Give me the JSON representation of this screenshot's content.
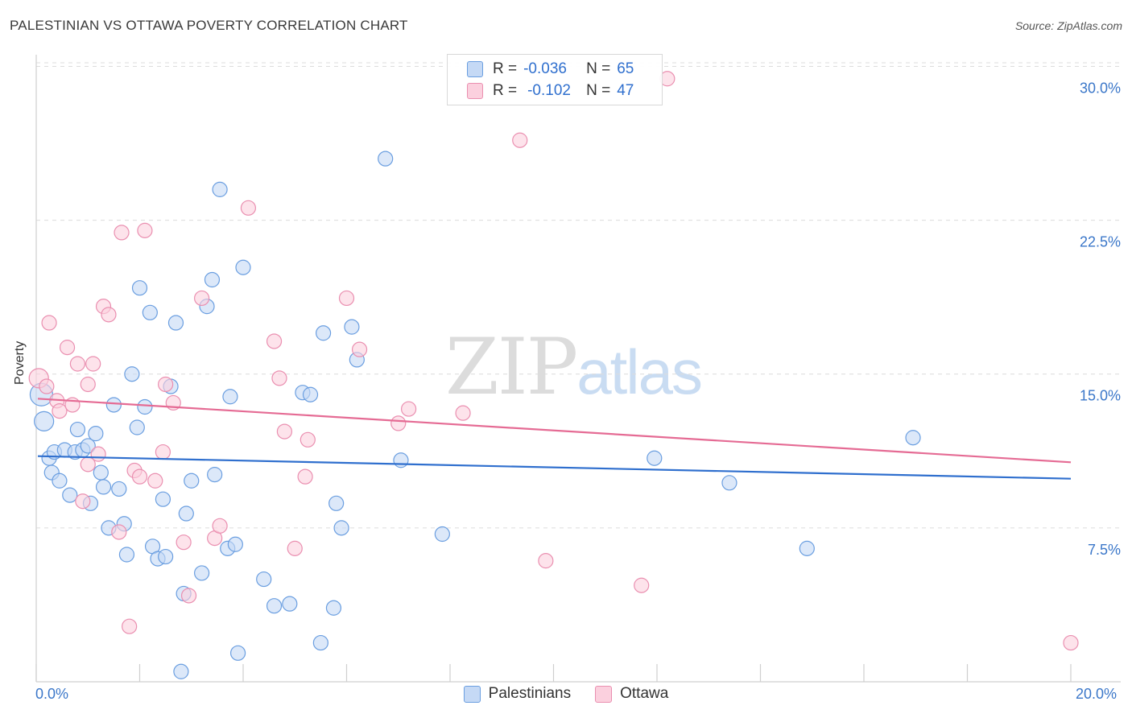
{
  "title": "PALESTINIAN VS OTTAWA POVERTY CORRELATION CHART",
  "source": "Source: ZipAtlas.com",
  "watermark": {
    "part1": "ZIP",
    "part2": "atlas"
  },
  "colors": {
    "palestinians_fill": "#c5d9f5",
    "palestinians_stroke": "#6a9ee0",
    "palestinians_line": "#2f6fce",
    "ottawa_fill": "#fbd0de",
    "ottawa_stroke": "#ea8fb0",
    "ottawa_line": "#e56b94",
    "axis_label": "#3b77c9",
    "grid": "#dcdcdc"
  },
  "legend": {
    "rows": [
      {
        "r_label": "R =",
        "r_value": "-0.036",
        "n_label": "N =",
        "n_value": "65"
      },
      {
        "r_label": "R =",
        "r_value": "-0.102",
        "n_label": "N =",
        "n_value": "47"
      }
    ]
  },
  "bottom_legend": {
    "series1": "Palestinians",
    "series2": "Ottawa"
  },
  "x_labels": {
    "min": "0.0%",
    "max": "20.0%"
  },
  "chart_data": {
    "type": "scatter",
    "title": "PALESTINIAN VS OTTAWA POVERTY CORRELATION CHART",
    "xlabel": "",
    "ylabel": "Poverty",
    "xlim": [
      0,
      20
    ],
    "ylim": [
      0,
      31
    ],
    "y_ticks": [
      {
        "value": 7.5,
        "label": "7.5%"
      },
      {
        "value": 15.0,
        "label": "15.0%"
      },
      {
        "value": 22.5,
        "label": "22.5%"
      },
      {
        "value": 30.0,
        "label": "30.0%"
      }
    ],
    "x_ticks": [
      0,
      2,
      4,
      6,
      8,
      10,
      12,
      14,
      16,
      18,
      20
    ],
    "series": [
      {
        "name": "Palestinians",
        "trend": {
          "x": [
            0,
            20
          ],
          "y": [
            11.0,
            9.9
          ]
        },
        "points": [
          [
            0.1,
            14.0,
            14
          ],
          [
            0.15,
            12.7,
            12
          ],
          [
            0.25,
            10.9,
            9
          ],
          [
            0.3,
            10.2,
            9
          ],
          [
            0.35,
            11.2,
            9
          ],
          [
            0.45,
            9.8,
            9
          ],
          [
            0.55,
            11.3,
            9
          ],
          [
            0.65,
            9.1,
            9
          ],
          [
            0.75,
            11.2,
            9
          ],
          [
            0.8,
            12.3,
            9
          ],
          [
            0.9,
            11.3,
            9
          ],
          [
            1.0,
            11.5,
            9
          ],
          [
            1.05,
            8.7,
            9
          ],
          [
            1.15,
            12.1,
            9
          ],
          [
            1.25,
            10.2,
            9
          ],
          [
            1.3,
            9.5,
            9
          ],
          [
            1.4,
            7.5,
            9
          ],
          [
            1.5,
            13.5,
            9
          ],
          [
            1.6,
            9.4,
            9
          ],
          [
            1.7,
            7.7,
            9
          ],
          [
            1.75,
            6.2,
            9
          ],
          [
            1.85,
            15.0,
            9
          ],
          [
            1.95,
            12.4,
            9
          ],
          [
            2.0,
            19.2,
            9
          ],
          [
            2.1,
            13.4,
            9
          ],
          [
            2.2,
            18.0,
            9
          ],
          [
            2.25,
            6.6,
            9
          ],
          [
            2.35,
            6.0,
            9
          ],
          [
            2.45,
            8.9,
            9
          ],
          [
            2.5,
            6.1,
            9
          ],
          [
            2.6,
            14.4,
            9
          ],
          [
            2.7,
            17.5,
            9
          ],
          [
            2.8,
            0.5,
            9
          ],
          [
            2.85,
            4.3,
            9
          ],
          [
            2.9,
            8.2,
            9
          ],
          [
            3.0,
            9.8,
            9
          ],
          [
            3.2,
            5.3,
            9
          ],
          [
            3.3,
            18.3,
            9
          ],
          [
            3.4,
            19.6,
            9
          ],
          [
            3.45,
            10.1,
            9
          ],
          [
            3.55,
            24.0,
            9
          ],
          [
            3.7,
            6.5,
            9
          ],
          [
            3.75,
            13.9,
            9
          ],
          [
            3.85,
            6.7,
            9
          ],
          [
            3.9,
            1.4,
            9
          ],
          [
            4.0,
            20.2,
            9
          ],
          [
            4.4,
            5.0,
            9
          ],
          [
            4.6,
            3.7,
            9
          ],
          [
            4.9,
            3.8,
            9
          ],
          [
            5.15,
            14.1,
            9
          ],
          [
            5.3,
            14.0,
            9
          ],
          [
            5.5,
            1.9,
            9
          ],
          [
            5.55,
            17.0,
            9
          ],
          [
            5.75,
            3.6,
            9
          ],
          [
            5.8,
            8.7,
            9
          ],
          [
            5.9,
            7.5,
            9
          ],
          [
            6.1,
            17.3,
            9
          ],
          [
            6.2,
            15.7,
            9
          ],
          [
            6.75,
            25.5,
            9
          ],
          [
            7.05,
            10.8,
            9
          ],
          [
            7.85,
            7.2,
            9
          ],
          [
            11.95,
            10.9,
            9
          ],
          [
            13.4,
            9.7,
            9
          ],
          [
            14.9,
            6.5,
            9
          ],
          [
            16.95,
            11.9,
            9
          ]
        ]
      },
      {
        "name": "Ottawa",
        "trend": {
          "x": [
            0,
            20
          ],
          "y": [
            13.8,
            10.7
          ]
        },
        "points": [
          [
            0.05,
            14.8,
            12
          ],
          [
            0.2,
            14.4,
            9
          ],
          [
            0.25,
            17.5,
            9
          ],
          [
            0.4,
            13.7,
            9
          ],
          [
            0.45,
            13.2,
            9
          ],
          [
            0.6,
            16.3,
            9
          ],
          [
            0.7,
            13.5,
            9
          ],
          [
            0.8,
            15.5,
            9
          ],
          [
            0.9,
            8.8,
            9
          ],
          [
            1.0,
            14.5,
            9
          ],
          [
            1.0,
            10.6,
            9
          ],
          [
            1.1,
            15.5,
            9
          ],
          [
            1.2,
            11.1,
            9
          ],
          [
            1.3,
            18.3,
            9
          ],
          [
            1.4,
            17.9,
            9
          ],
          [
            1.6,
            7.3,
            9
          ],
          [
            1.65,
            21.9,
            9
          ],
          [
            1.8,
            2.7,
            9
          ],
          [
            1.9,
            10.3,
            9
          ],
          [
            2.0,
            10.0,
            9
          ],
          [
            2.1,
            22.0,
            9
          ],
          [
            2.3,
            9.8,
            9
          ],
          [
            2.45,
            11.2,
            9
          ],
          [
            2.5,
            14.5,
            9
          ],
          [
            2.65,
            13.6,
            9
          ],
          [
            2.85,
            6.8,
            9
          ],
          [
            2.95,
            4.2,
            9
          ],
          [
            3.2,
            18.7,
            9
          ],
          [
            3.45,
            7.0,
            9
          ],
          [
            3.55,
            7.6,
            9
          ],
          [
            4.1,
            23.1,
            9
          ],
          [
            4.6,
            16.6,
            9
          ],
          [
            4.7,
            14.8,
            9
          ],
          [
            4.8,
            12.2,
            9
          ],
          [
            5.0,
            6.5,
            9
          ],
          [
            5.2,
            10.0,
            9
          ],
          [
            5.25,
            11.8,
            9
          ],
          [
            6.0,
            18.7,
            9
          ],
          [
            6.25,
            16.2,
            9
          ],
          [
            7.0,
            12.6,
            9
          ],
          [
            7.2,
            13.3,
            9
          ],
          [
            8.25,
            13.1,
            9
          ],
          [
            9.35,
            26.4,
            9
          ],
          [
            9.85,
            5.9,
            9
          ],
          [
            11.7,
            4.7,
            9
          ],
          [
            12.2,
            29.4,
            9
          ],
          [
            20.0,
            1.9,
            9
          ]
        ]
      }
    ]
  }
}
